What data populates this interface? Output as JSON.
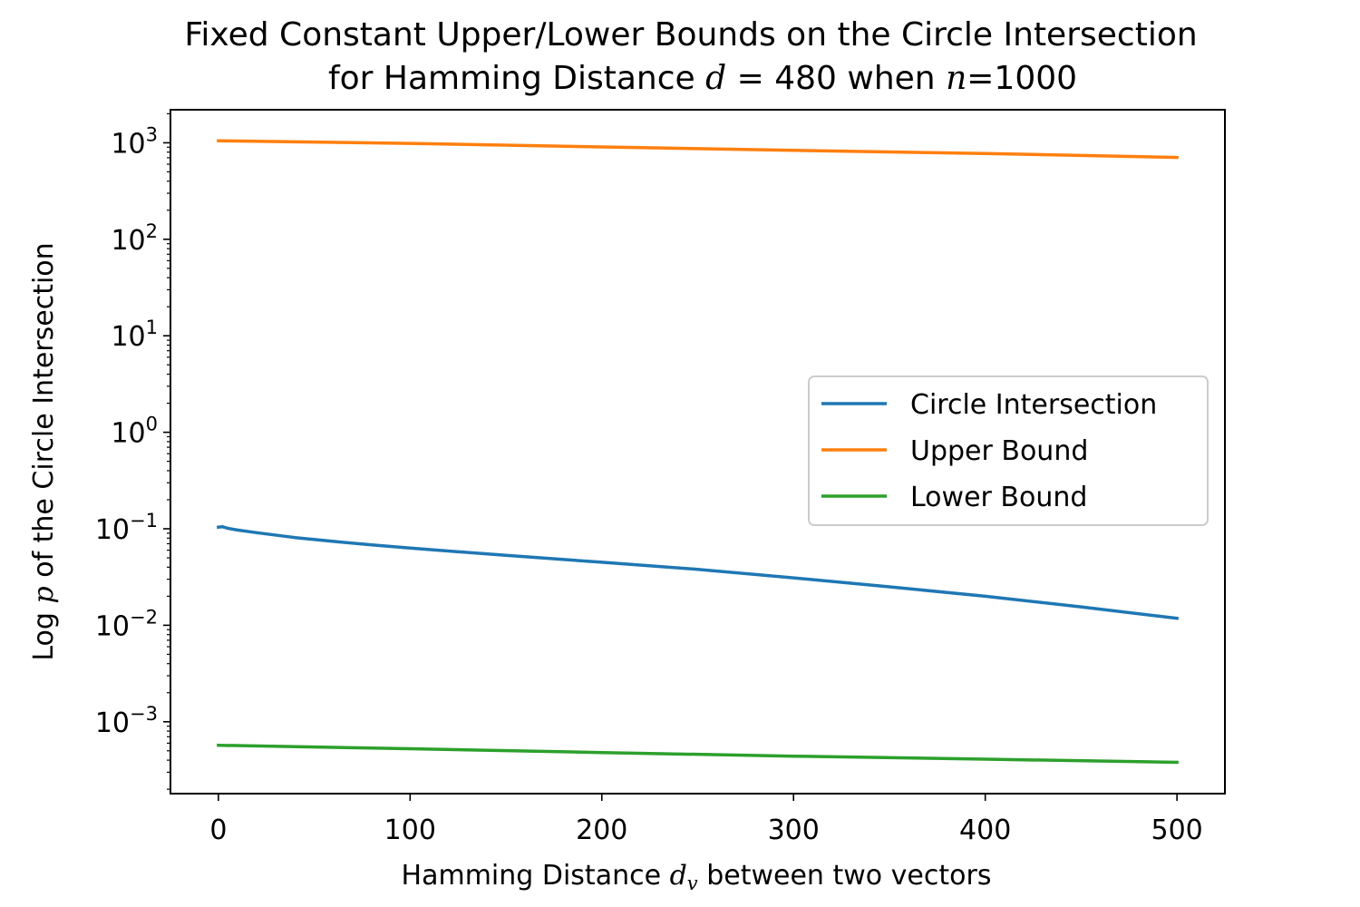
{
  "chart_data": {
    "type": "line",
    "title_line1": "Fixed Constant Upper/Lower Bounds on the Circle Intersection",
    "title_line2": {
      "before": "for Hamming Distance ",
      "d_var": "d",
      "mid": " = 480 when ",
      "n_var": "n",
      "after": "=1000"
    },
    "xlabel": {
      "before": "Hamming Distance ",
      "var": "d",
      "sub": "v",
      "after": " between two vectors"
    },
    "ylabel": {
      "before": "Log ",
      "var": "p",
      "after": " of the Circle Intersection"
    },
    "xlim": [
      -25,
      525
    ],
    "ylim": [
      0.00018,
      2200
    ],
    "yscale": "log",
    "x_ticks": [
      0,
      100,
      200,
      300,
      400,
      500
    ],
    "y_ticks": [
      {
        "value": 0.001,
        "base": "10",
        "exp": "−3"
      },
      {
        "value": 0.01,
        "base": "10",
        "exp": "−2"
      },
      {
        "value": 0.1,
        "base": "10",
        "exp": "−1"
      },
      {
        "value": 1,
        "base": "10",
        "exp": "0"
      },
      {
        "value": 10,
        "base": "10",
        "exp": "1"
      },
      {
        "value": 100,
        "base": "10",
        "exp": "2"
      },
      {
        "value": 1000,
        "base": "10",
        "exp": "3"
      }
    ],
    "grid": false,
    "legend_position": "center-right",
    "series": [
      {
        "name": "Circle Intersection",
        "color": "#1f77b4",
        "points": [
          [
            0,
            0.104
          ],
          [
            2,
            0.105
          ],
          [
            5,
            0.101
          ],
          [
            10,
            0.097
          ],
          [
            20,
            0.091
          ],
          [
            40,
            0.081
          ],
          [
            60,
            0.074
          ],
          [
            80,
            0.068
          ],
          [
            100,
            0.063
          ],
          [
            150,
            0.053
          ],
          [
            200,
            0.045
          ],
          [
            250,
            0.038
          ],
          [
            300,
            0.031
          ],
          [
            350,
            0.025
          ],
          [
            400,
            0.02
          ],
          [
            450,
            0.0155
          ],
          [
            500,
            0.0118
          ]
        ]
      },
      {
        "name": "Upper Bound",
        "color": "#ff7f0e",
        "points": [
          [
            0,
            1050
          ],
          [
            100,
            985
          ],
          [
            200,
            905
          ],
          [
            300,
            835
          ],
          [
            400,
            775
          ],
          [
            500,
            705
          ]
        ]
      },
      {
        "name": "Lower Bound",
        "color": "#2ca02c",
        "points": [
          [
            0,
            0.00057
          ],
          [
            100,
            0.000525
          ],
          [
            200,
            0.00048
          ],
          [
            300,
            0.00044
          ],
          [
            400,
            0.00041
          ],
          [
            500,
            0.00038
          ]
        ]
      }
    ]
  }
}
